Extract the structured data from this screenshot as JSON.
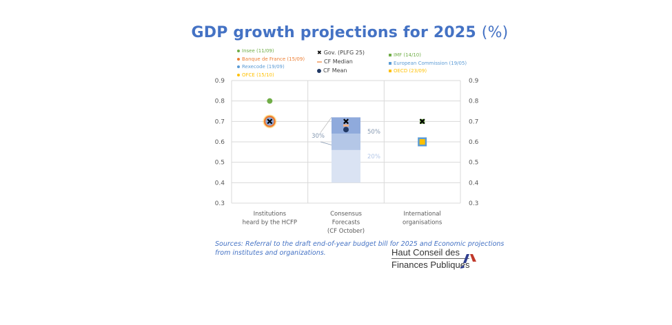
{
  "chart_data": {
    "type": "scatter",
    "title": "GDP growth projections for 2025",
    "title_unit": "(%)",
    "ylim": [
      0.3,
      0.9
    ],
    "yticks": [
      "0.3",
      "0.4",
      "0.5",
      "0.6",
      "0.7",
      "0.8",
      "0.9"
    ],
    "grid": true,
    "categories": [
      "Institutions heard by the HCFP",
      "Consensus Forecasts (CF October)",
      "International organisations"
    ],
    "category_lines": [
      [
        "Institutions",
        "heard by the HCFP"
      ],
      [
        "Consensus",
        "Forecasts",
        "(CF October)"
      ],
      [
        "International",
        "organisations"
      ]
    ],
    "legend": {
      "left": [
        {
          "label": "Insee (11/09)",
          "color": "#70ad47"
        },
        {
          "label": "Banque de France (15/09)",
          "color": "#ed7d31"
        },
        {
          "label": "Rexecode (19/09)",
          "color": "#5b9bd5"
        },
        {
          "label": "OFCE (15/10)",
          "color": "#ffc000"
        }
      ],
      "middle": [
        {
          "label": "Gov. (PLFG 25)",
          "marker": "x",
          "color": "#000000"
        },
        {
          "label": "CF Median",
          "marker": "dash",
          "color": "#f4b183"
        },
        {
          "label": "CF Mean",
          "marker": "circle",
          "color": "#203864"
        }
      ],
      "right": [
        {
          "label": "IMF (14/10)",
          "color": "#70ad47"
        },
        {
          "label": "European Commission (19/05)",
          "color": "#5b9bd5"
        },
        {
          "label": "OECD (23/09)",
          "color": "#ffc000"
        }
      ]
    },
    "series": [
      {
        "name": "Insee (11/09)",
        "category": 0,
        "value": 0.8,
        "marker": "circle",
        "color": "#70ad47"
      },
      {
        "name": "OFCE (15/10)",
        "category": 0,
        "value": 0.7,
        "marker": "circle-large",
        "color": "#ffc000"
      },
      {
        "name": "Banque de France (15/09)",
        "category": 0,
        "value": 0.7,
        "marker": "circle-large",
        "color": "#ed7d31"
      },
      {
        "name": "Rexecode (19/09)",
        "category": 0,
        "value": 0.7,
        "marker": "circle",
        "color": "#8faadc"
      },
      {
        "name": "Gov. (PLFG 25)",
        "category": 0,
        "value": 0.7,
        "marker": "x",
        "color": "#000000"
      },
      {
        "name": "Gov. (PLFG 25)",
        "category": 1,
        "value": 0.7,
        "marker": "x",
        "color": "#000000"
      },
      {
        "name": "CF Median",
        "category": 1,
        "value": 0.68,
        "marker": "dash",
        "color": "#f4b183"
      },
      {
        "name": "CF Mean",
        "category": 1,
        "value": 0.66,
        "marker": "circle",
        "color": "#203864"
      },
      {
        "name": "IMF (14/10)",
        "category": 2,
        "value": 0.7,
        "marker": "square",
        "color": "#70ad47"
      },
      {
        "name": "Gov. (PLFG 25)",
        "category": 2,
        "value": 0.7,
        "marker": "x",
        "color": "#000000"
      },
      {
        "name": "European Commission (19/05)",
        "category": 2,
        "value": 0.6,
        "marker": "square-large",
        "color": "#5b9bd5"
      },
      {
        "name": "OECD (23/09)",
        "category": 2,
        "value": 0.6,
        "marker": "square",
        "color": "#ffc000"
      }
    ],
    "ranges": [
      {
        "category": 1,
        "from": 0.4,
        "to": 0.56,
        "label": "20%",
        "color": "#dae3f3",
        "label_side": "right"
      },
      {
        "category": 1,
        "from": 0.56,
        "to": 0.64,
        "label": "30%",
        "color": "#b4c7e7",
        "label_side": "left"
      },
      {
        "category": 1,
        "from": 0.64,
        "to": 0.72,
        "label": "50%",
        "color": "#8faadc",
        "label_side": "right"
      }
    ]
  },
  "sources": "Sources: Referral to the draft end-of-year budget bill for 2025 and  Economic projections from institutes and organizations.",
  "logo": {
    "line1": "Haut Conseil des",
    "line2": "Finances Publiques"
  }
}
